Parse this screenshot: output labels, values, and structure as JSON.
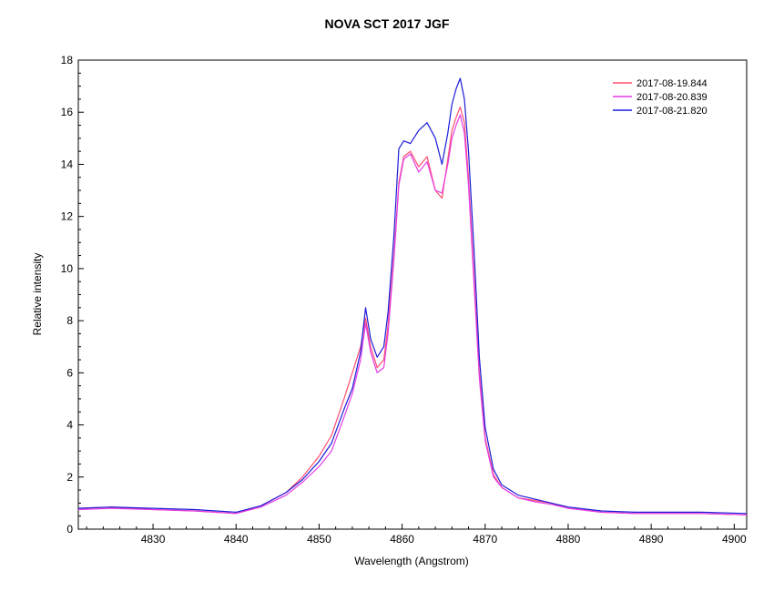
{
  "chart_data": {
    "type": "line",
    "title": "NOVA SCT 2017   JGF",
    "xlabel": "Wavelength (Angstrom)",
    "ylabel": "Relative intensity",
    "xlim": [
      4821.0,
      4901.5
    ],
    "ylim": [
      0,
      18
    ],
    "xticks": [
      "4830",
      "4840",
      "4850",
      "4860",
      "4870",
      "4880",
      "4890",
      "4900"
    ],
    "yticks": [
      "0",
      "2",
      "4",
      "6",
      "8",
      "10",
      "12",
      "14",
      "16",
      "18"
    ],
    "grid": false,
    "legend_position": "top-right",
    "series": [
      {
        "name": "2017-08-19.844",
        "color": "#ff4f6f",
        "x": [
          4821,
          4825,
          4830,
          4835,
          4840,
          4843,
          4846,
          4848,
          4850,
          4851.5,
          4853,
          4854,
          4855,
          4855.6,
          4856.2,
          4857,
          4857.8,
          4858.3,
          4859,
          4859.6,
          4860.2,
          4861,
          4862,
          4863,
          4864,
          4864.8,
          4865.5,
          4866,
          4866.5,
          4867,
          4867.5,
          4868,
          4868.7,
          4869.3,
          4870,
          4871,
          4872,
          4874,
          4876,
          4878,
          4880,
          4884,
          4888,
          4892,
          4896,
          4901.5
        ],
        "y": [
          0.8,
          0.85,
          0.75,
          0.7,
          0.6,
          0.9,
          1.4,
          2.0,
          2.8,
          3.6,
          5.0,
          6.0,
          7.0,
          8.1,
          7.0,
          6.2,
          6.5,
          7.8,
          10.5,
          13.3,
          14.3,
          14.5,
          13.9,
          14.3,
          13.0,
          12.7,
          14.2,
          15.3,
          15.8,
          16.2,
          15.6,
          13.5,
          9.5,
          6.0,
          3.5,
          2.1,
          1.6,
          1.2,
          1.1,
          1.0,
          0.8,
          0.65,
          0.6,
          0.6,
          0.6,
          0.55
        ]
      },
      {
        "name": "2017-08-20.839",
        "color": "#e43ce4",
        "x": [
          4821,
          4825,
          4830,
          4835,
          4840,
          4843,
          4846,
          4848,
          4850,
          4851.5,
          4853,
          4854,
          4855,
          4855.6,
          4856.2,
          4857,
          4857.8,
          4858.3,
          4859,
          4859.6,
          4860.2,
          4861,
          4862,
          4863,
          4864,
          4864.8,
          4865.5,
          4866,
          4866.5,
          4867,
          4867.5,
          4868,
          4868.7,
          4869.3,
          4870,
          4871,
          4872,
          4874,
          4876,
          4878,
          4880,
          4884,
          4888,
          4892,
          4896,
          4901.5
        ],
        "y": [
          0.75,
          0.8,
          0.75,
          0.7,
          0.6,
          0.85,
          1.3,
          1.8,
          2.4,
          3.0,
          4.3,
          5.2,
          6.5,
          7.9,
          6.8,
          6.0,
          6.2,
          7.5,
          10.3,
          13.2,
          14.2,
          14.4,
          13.7,
          14.1,
          13.0,
          12.9,
          14.0,
          15.0,
          15.5,
          15.9,
          15.2,
          13.2,
          9.2,
          5.8,
          3.4,
          2.0,
          1.6,
          1.2,
          1.05,
          0.95,
          0.8,
          0.65,
          0.6,
          0.6,
          0.6,
          0.55
        ]
      },
      {
        "name": "2017-08-21.820",
        "color": "#1c1cd8",
        "x": [
          4821,
          4825,
          4830,
          4835,
          4840,
          4843,
          4846,
          4848,
          4850,
          4851.5,
          4853,
          4854,
          4855,
          4855.6,
          4856.2,
          4857,
          4857.8,
          4858.3,
          4859,
          4859.6,
          4860.2,
          4861,
          4862,
          4863,
          4864,
          4864.8,
          4865.5,
          4866,
          4866.5,
          4867,
          4867.5,
          4868,
          4868.7,
          4869.3,
          4870,
          4871,
          4872,
          4874,
          4876,
          4878,
          4880,
          4884,
          4888,
          4892,
          4896,
          4901.5
        ],
        "y": [
          0.8,
          0.85,
          0.8,
          0.75,
          0.65,
          0.9,
          1.4,
          1.9,
          2.6,
          3.3,
          4.6,
          5.4,
          6.8,
          8.5,
          7.3,
          6.6,
          7.0,
          8.3,
          11.2,
          14.6,
          14.9,
          14.8,
          15.3,
          15.6,
          15.0,
          14.0,
          15.2,
          16.3,
          16.9,
          17.3,
          16.5,
          14.5,
          10.5,
          6.6,
          3.9,
          2.3,
          1.7,
          1.3,
          1.15,
          1.0,
          0.85,
          0.7,
          0.65,
          0.65,
          0.65,
          0.6
        ]
      }
    ]
  }
}
